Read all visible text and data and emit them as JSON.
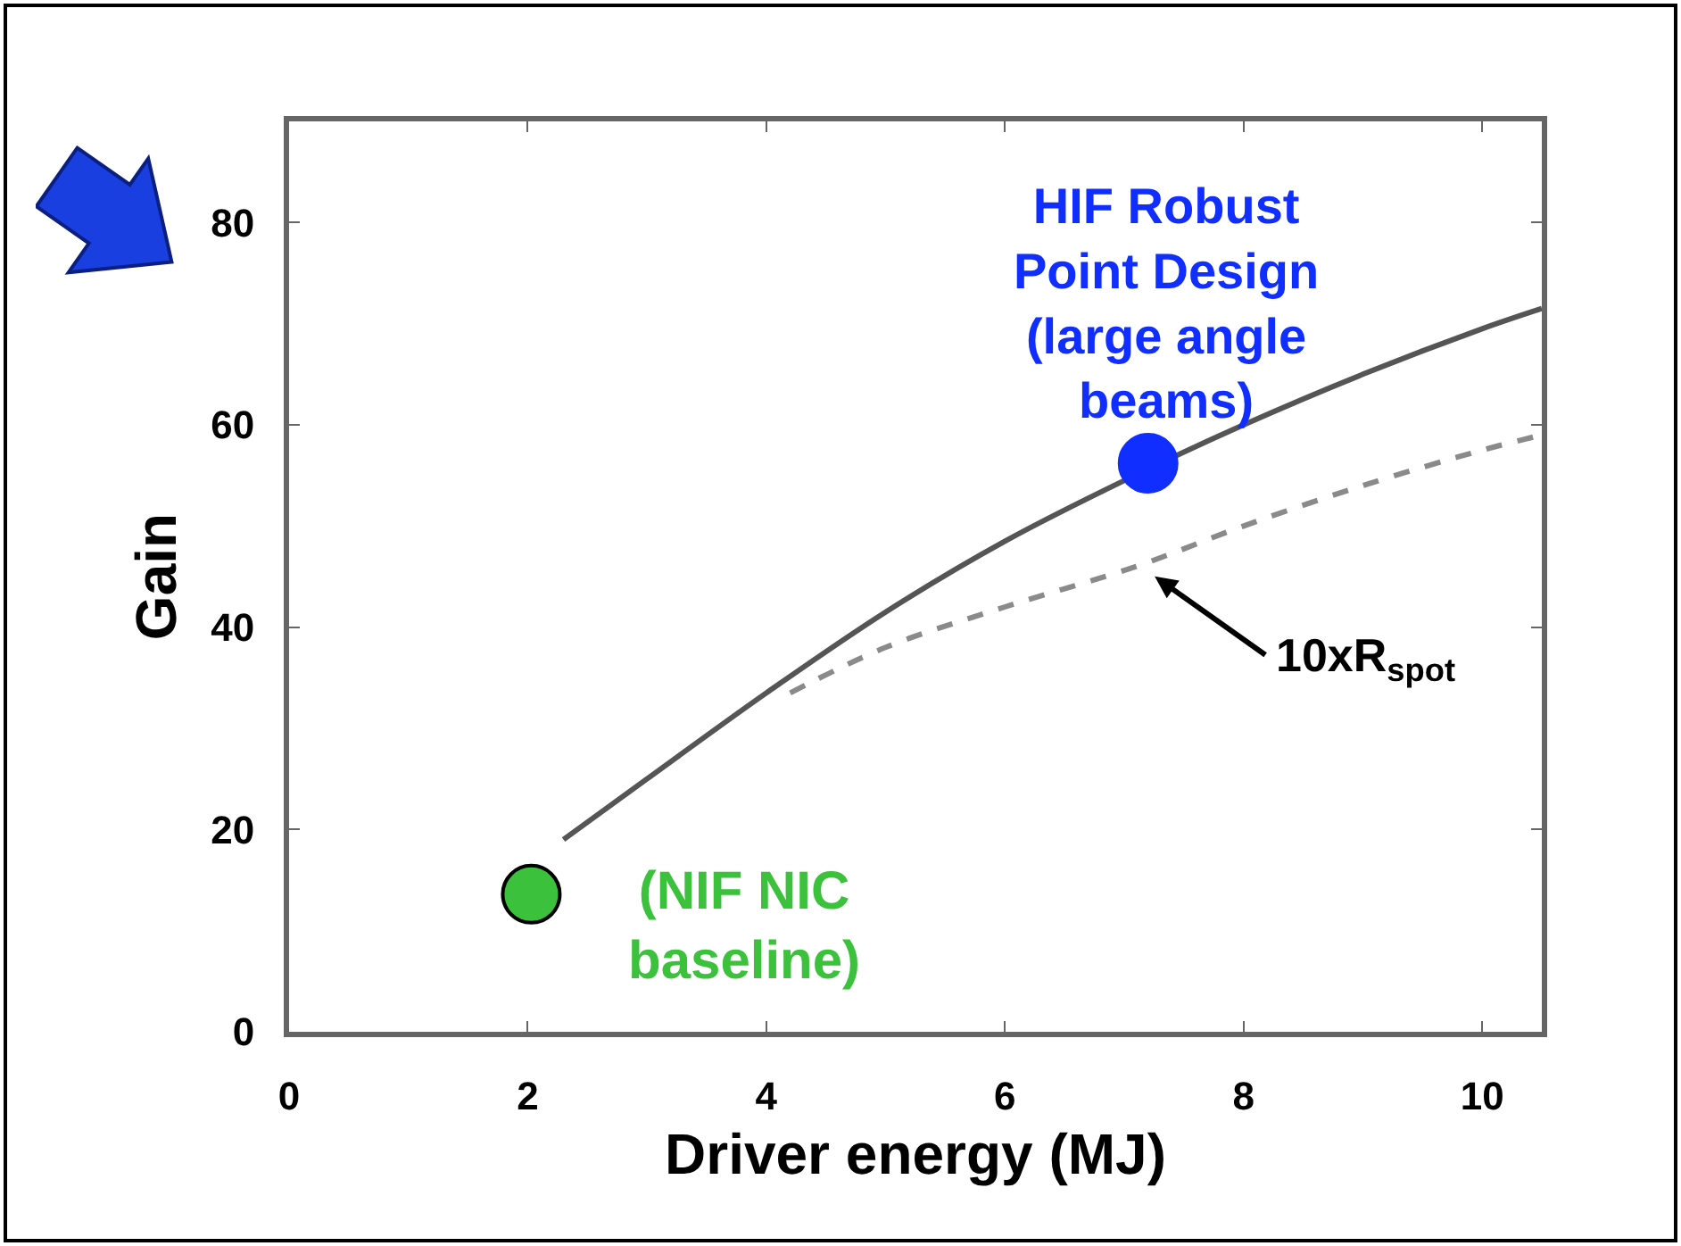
{
  "chart_data": {
    "type": "line",
    "xlabel": "Driver energy (MJ)",
    "ylabel": "Gain",
    "xlim": [
      0,
      10.5
    ],
    "ylim": [
      0,
      90
    ],
    "xticks": [
      0,
      2,
      4,
      6,
      8,
      10
    ],
    "yticks": [
      0,
      20,
      40,
      60,
      80
    ],
    "series": [
      {
        "color": "#555555",
        "line_style": "solid",
        "marker": "none",
        "x": [
          2.3,
          3,
          4,
          5,
          6,
          7,
          8,
          9,
          10,
          10.5
        ],
        "values": [
          19,
          25,
          33.5,
          41.5,
          48.5,
          54.5,
          60,
          65,
          69.5,
          71.5
        ]
      },
      {
        "color": "#8a8a8a",
        "line_style": "dashed",
        "marker": "none",
        "x": [
          4.2,
          5,
          6,
          7.1,
          8,
          9,
          10,
          10.5
        ],
        "values": [
          33.5,
          38,
          42,
          46,
          50,
          54,
          57.5,
          59
        ]
      },
      {
        "type": "scatter",
        "marker": "circle",
        "x": [
          7.2,
          2.03
        ],
        "values": [
          56.2,
          13.6
        ],
        "colors": [
          "#0f2eff",
          "#3cc13c"
        ]
      }
    ],
    "annotations": [
      {
        "text": "HIF Robust\nPoint Design\n(large angle\nbeams)",
        "x": 7.2,
        "y": 56.2
      },
      "10xR$_{spot}$",
      {
        "text": "(NIF NIC\nbaseline)",
        "x": 2.03,
        "y": 13.6
      }
    ]
  }
}
